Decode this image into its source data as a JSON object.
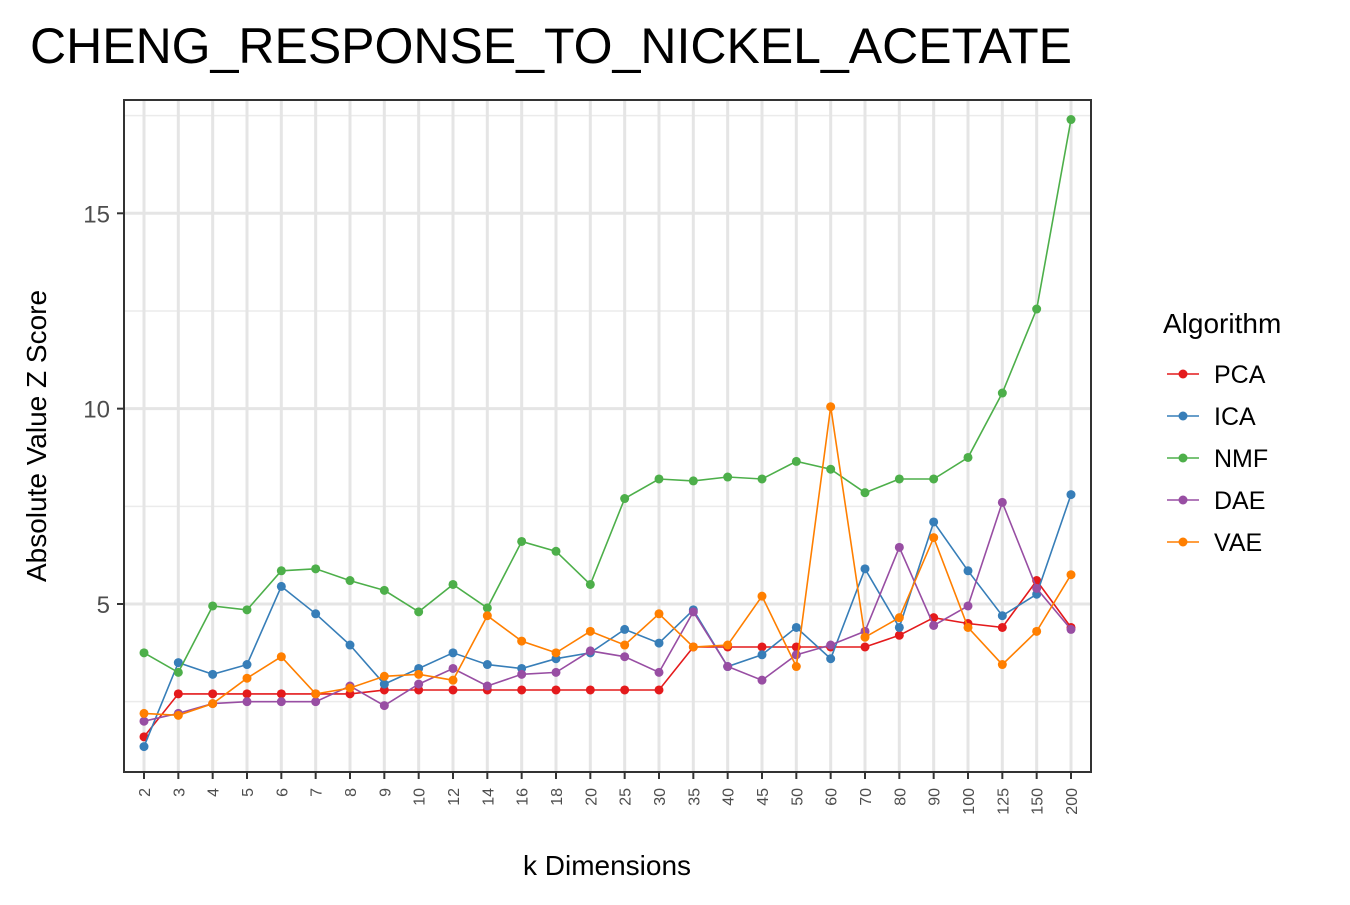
{
  "chart_data": {
    "type": "line",
    "title": "CHENG_RESPONSE_TO_NICKEL_ACETATE",
    "xlabel": "k Dimensions",
    "ylabel": "Absolute Value Z Score",
    "categories": [
      "2",
      "3",
      "4",
      "5",
      "6",
      "7",
      "8",
      "9",
      "10",
      "12",
      "14",
      "16",
      "18",
      "20",
      "25",
      "30",
      "35",
      "40",
      "45",
      "50",
      "60",
      "70",
      "80",
      "90",
      "100",
      "125",
      "150",
      "200"
    ],
    "y_ticks": [
      5,
      10,
      15
    ],
    "ylim": [
      0.7,
      17.9
    ],
    "grid": true,
    "legend": {
      "title": "Algorithm",
      "position": "right"
    },
    "series": [
      {
        "name": "PCA",
        "color": "#e41a1c",
        "values": [
          1.6,
          2.7,
          2.7,
          2.7,
          2.7,
          2.7,
          2.7,
          2.8,
          2.8,
          2.8,
          2.8,
          2.8,
          2.8,
          2.8,
          2.8,
          2.8,
          3.9,
          3.9,
          3.9,
          3.9,
          3.9,
          3.9,
          4.2,
          4.65,
          4.5,
          4.4,
          5.6,
          4.4
        ]
      },
      {
        "name": "ICA",
        "color": "#377eb8",
        "values": [
          1.35,
          3.5,
          3.2,
          3.45,
          5.45,
          4.75,
          3.95,
          2.95,
          3.35,
          3.75,
          3.45,
          3.35,
          3.6,
          3.75,
          4.35,
          4.0,
          4.85,
          3.4,
          3.7,
          4.4,
          3.6,
          5.9,
          4.4,
          7.1,
          5.85,
          4.7,
          5.25,
          7.8
        ]
      },
      {
        "name": "NMF",
        "color": "#4daf4a",
        "values": [
          3.75,
          3.25,
          4.95,
          4.85,
          5.85,
          5.9,
          5.6,
          5.35,
          4.8,
          5.5,
          4.9,
          6.6,
          6.35,
          5.5,
          7.7,
          8.2,
          8.15,
          8.25,
          8.2,
          8.65,
          8.45,
          7.85,
          8.2,
          8.2,
          8.75,
          10.4,
          12.55,
          17.4
        ]
      },
      {
        "name": "DAE",
        "color": "#984ea3",
        "values": [
          2.0,
          2.2,
          2.45,
          2.5,
          2.5,
          2.5,
          2.9,
          2.4,
          2.95,
          3.35,
          2.9,
          3.2,
          3.25,
          3.8,
          3.65,
          3.25,
          4.8,
          3.4,
          3.05,
          3.7,
          3.95,
          4.3,
          6.45,
          4.45,
          4.95,
          7.6,
          5.4,
          4.35
        ]
      },
      {
        "name": "VAE",
        "color": "#ff7f00",
        "values": [
          2.2,
          2.15,
          2.45,
          3.1,
          3.65,
          2.7,
          2.85,
          3.15,
          3.2,
          3.05,
          4.7,
          4.05,
          3.75,
          4.3,
          3.95,
          4.75,
          3.9,
          3.95,
          5.2,
          3.4,
          10.05,
          4.15,
          4.65,
          6.7,
          4.4,
          3.45,
          4.3,
          5.75
        ]
      }
    ]
  }
}
